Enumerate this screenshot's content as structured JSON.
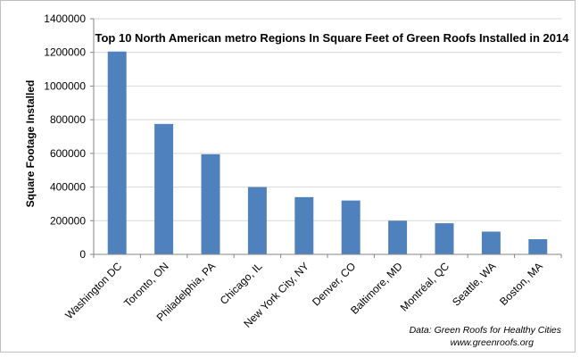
{
  "chart_data": {
    "type": "bar",
    "title": "Top 10 North American metro Regions In Square Feet of Green Roofs Installed in 2014",
    "xlabel": "",
    "ylabel": "Square Footage Installed",
    "categories": [
      "Washington DC",
      "Toronto, ON",
      "Philadelphia, PA",
      "Chicago, IL",
      "New York City, NY",
      "Denver, CO",
      "Baltimore, MD",
      "Montréal, QC",
      "Seattle, WA",
      "Boston, MA"
    ],
    "values": [
      1205000,
      775000,
      595000,
      400000,
      340000,
      320000,
      200000,
      185000,
      135000,
      90000
    ],
    "ylim": [
      0,
      1400000
    ],
    "yticks": [
      0,
      200000,
      400000,
      600000,
      800000,
      1000000,
      1200000,
      1400000
    ],
    "grid": true,
    "legend": "none",
    "bar_color": "#4f81bd",
    "source_lines": [
      "Data: Green Roofs for Healthy Cities",
      "www.greenroofs.org"
    ]
  }
}
